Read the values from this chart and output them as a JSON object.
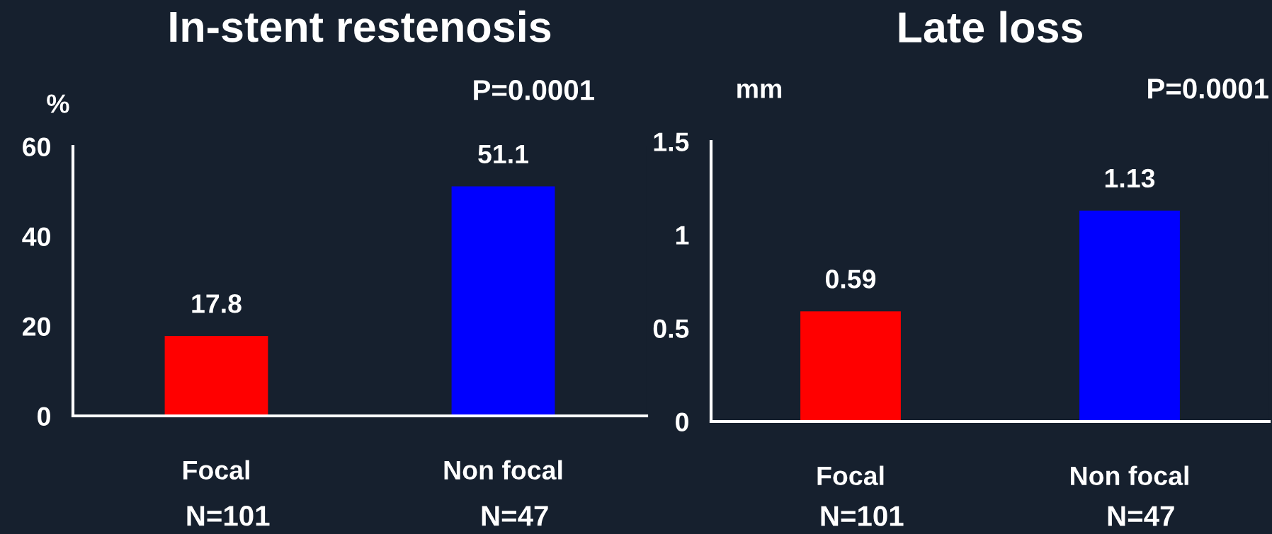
{
  "chart_data": [
    {
      "type": "bar",
      "title": "In-stent restenosis",
      "ylabel": "%",
      "categories": [
        "Focal",
        "Non focal"
      ],
      "values": [
        17.8,
        51.1
      ],
      "colors": [
        "#ff0000",
        "#0000ff"
      ],
      "ylim": [
        0,
        60
      ],
      "yticks": [
        0,
        20,
        40,
        60
      ],
      "data_labels": true,
      "grid": false,
      "legend": false,
      "annotations": [
        "P=0.0001",
        "N=101",
        "N=47"
      ]
    },
    {
      "type": "bar",
      "title": "Late loss",
      "ylabel": "mm",
      "categories": [
        "Focal",
        "Non focal"
      ],
      "values": [
        0.59,
        1.13
      ],
      "colors": [
        "#ff0000",
        "#0000ff"
      ],
      "ylim": [
        0,
        1.5
      ],
      "yticks": [
        0,
        0.5,
        1,
        1.5
      ],
      "data_labels": true,
      "grid": false,
      "legend": false,
      "annotations": [
        "P=0.0001",
        "N=101",
        "N=47"
      ]
    }
  ]
}
